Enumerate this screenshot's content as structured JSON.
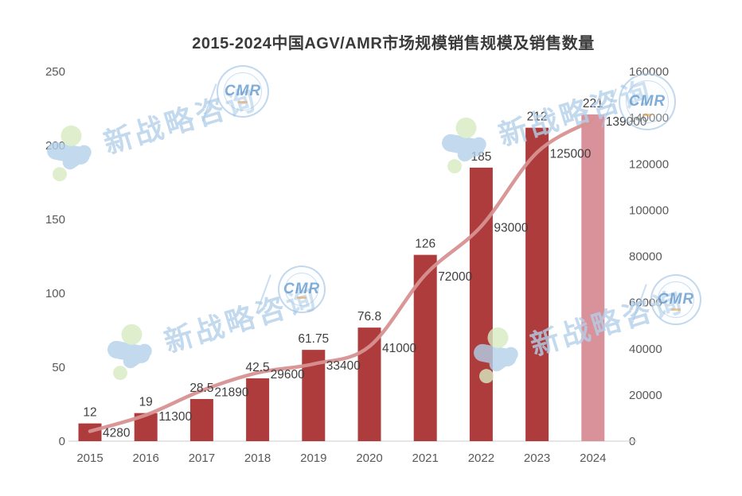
{
  "title": "2015-2024中国AGV/AMR市场规模销售规模及销售数量",
  "watermark": {
    "text": "新战略咨询",
    "badge_text": "CMR"
  },
  "colors": {
    "bar": "#ae3c3c",
    "bar_forecast": "#d9929a",
    "line": "#d89191",
    "axis_text": "#595959",
    "label_text": "#3f3f3f",
    "axis_line": "#d6d6d6"
  },
  "chart_data": {
    "type": "bar+line",
    "title": "2015-2024中国AGV/AMR市场规模销售规模及销售数量",
    "categories": [
      "2015",
      "2016",
      "2017",
      "2018",
      "2019",
      "2020",
      "2021",
      "2022",
      "2023",
      "2024"
    ],
    "series": [
      {
        "name": "市场规模(销售规模)",
        "type": "bar",
        "axis": "left",
        "values": [
          12,
          19,
          28.5,
          42.5,
          61.75,
          76.8,
          126,
          185,
          212,
          221
        ]
      },
      {
        "name": "销售数量",
        "type": "line",
        "axis": "right",
        "values": [
          4280,
          11300,
          21890,
          29600,
          33400,
          41000,
          72000,
          93000,
          125000,
          139000
        ]
      }
    ],
    "forecast_index": 9,
    "left_axis": {
      "min": 0,
      "max": 250,
      "ticks": [
        0,
        50,
        100,
        150,
        200,
        250
      ]
    },
    "right_axis": {
      "min": 0,
      "max": 160000,
      "ticks": [
        0,
        20000,
        40000,
        60000,
        80000,
        100000,
        120000,
        140000,
        160000
      ]
    },
    "grid": false,
    "legend": false
  }
}
